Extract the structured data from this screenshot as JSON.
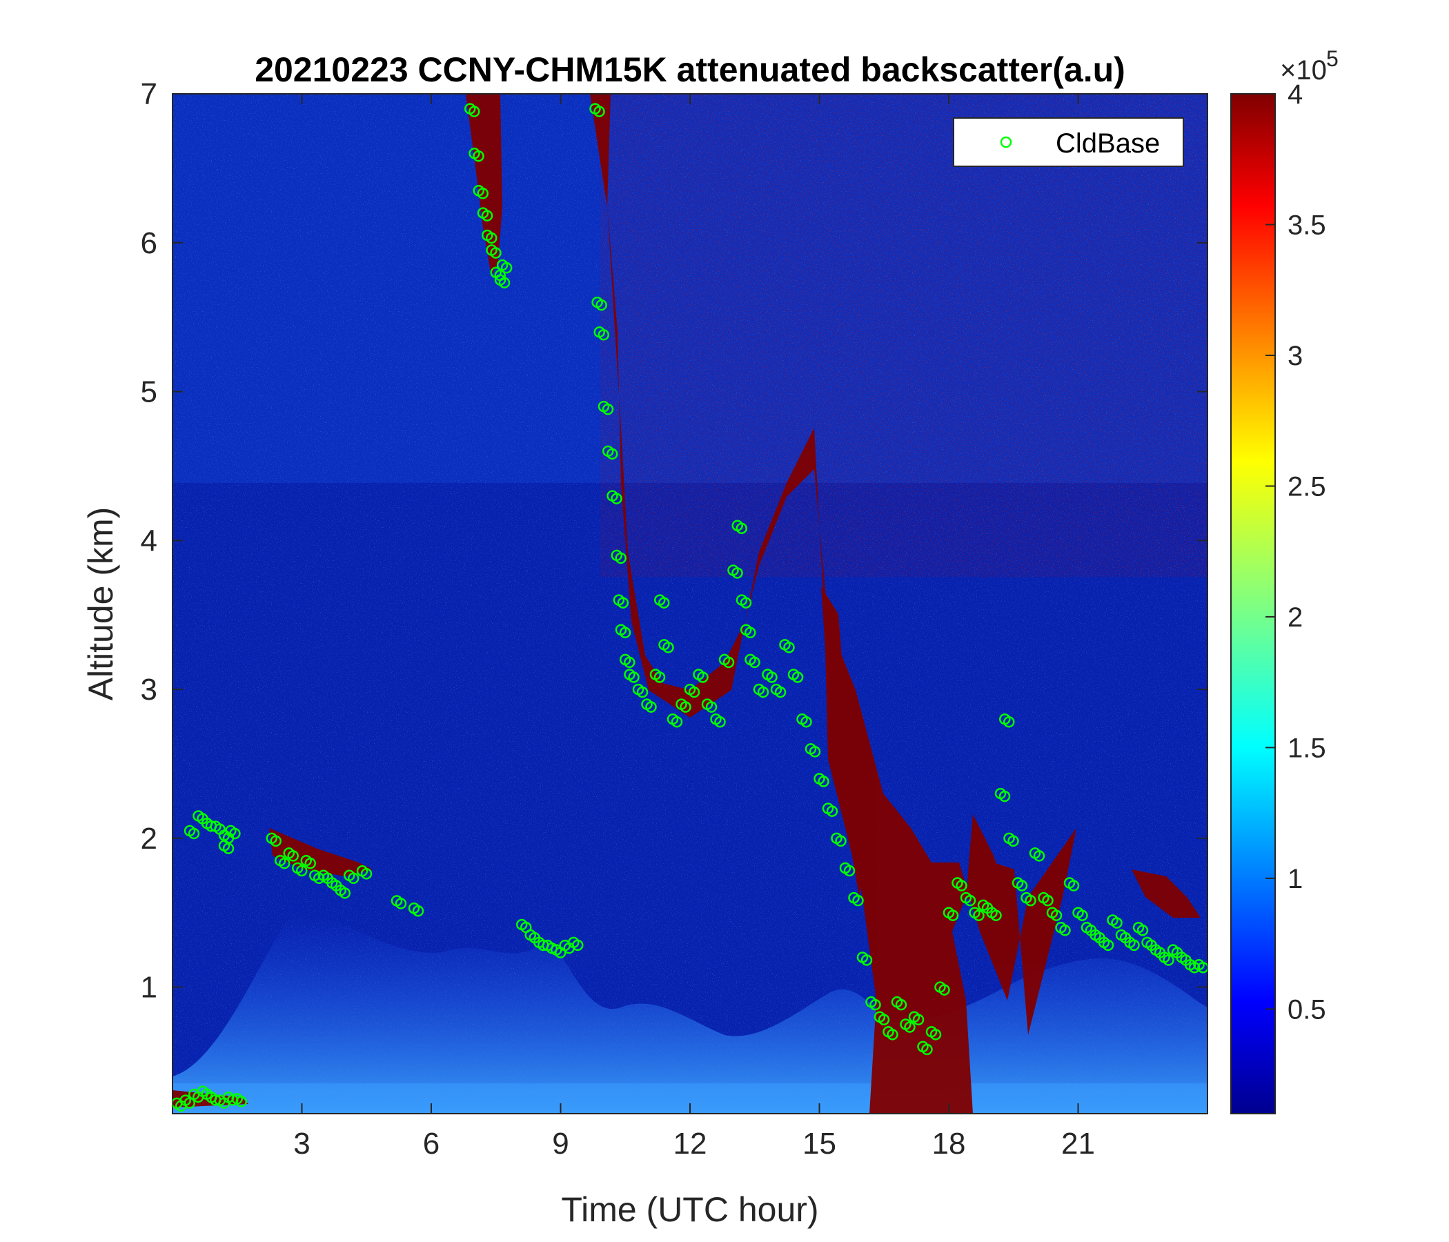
{
  "chart_data": {
    "type": "heatmap",
    "title": "20210223 CCNY-CHM15K attenuated backscatter(a.u)",
    "xlabel": "Time (UTC hour)",
    "ylabel": "Altitude (km)",
    "xlim": [
      0,
      24
    ],
    "ylim": [
      0.15,
      7
    ],
    "xticks": [
      3,
      6,
      9,
      12,
      15,
      18,
      21
    ],
    "xtick_labels": [
      "3",
      "6",
      "9",
      "12",
      "15",
      "18",
      "21"
    ],
    "yticks": [
      1,
      2,
      3,
      4,
      5,
      6,
      7
    ],
    "ytick_labels": [
      "1",
      "2",
      "3",
      "4",
      "5",
      "6",
      "7"
    ],
    "colormap": "jet",
    "colorbar": {
      "range": [
        10000,
        400000
      ],
      "ticks": [
        50000,
        100000,
        150000,
        200000,
        250000,
        300000,
        350000,
        400000
      ],
      "tick_labels": [
        "0.5",
        "1",
        "1.5",
        "2",
        "2.5",
        "3",
        "3.5",
        "4"
      ],
      "exponent_base": "×10",
      "exponent_power": "5"
    },
    "legend": {
      "placement": "top-right",
      "entries": [
        "CldBase"
      ]
    },
    "series": [
      {
        "name": "CldBase",
        "marker": "circle-open",
        "color": "#00ff00",
        "x": [
          0.1,
          0.3,
          0.5,
          0.7,
          0.9,
          1.1,
          1.3,
          1.5,
          0.4,
          0.6,
          0.8,
          1.0,
          1.2,
          1.2,
          1.35,
          2.3,
          2.5,
          2.7,
          2.9,
          3.1,
          3.3,
          3.5,
          3.7,
          3.9,
          4.1,
          4.4,
          5.2,
          5.6,
          6.9,
          7.0,
          7.1,
          7.2,
          7.3,
          7.4,
          7.5,
          7.6,
          7.65,
          8.1,
          8.3,
          8.5,
          8.7,
          8.9,
          9.1,
          9.3,
          9.8,
          9.85,
          9.9,
          10.0,
          10.1,
          10.2,
          10.3,
          10.35,
          10.4,
          10.5,
          10.6,
          10.8,
          11.0,
          11.2,
          11.3,
          11.4,
          11.6,
          11.8,
          12.0,
          12.2,
          12.4,
          12.6,
          12.8,
          13.0,
          13.1,
          13.2,
          13.3,
          13.4,
          13.6,
          13.8,
          14.0,
          14.2,
          14.4,
          14.6,
          14.8,
          15.0,
          15.2,
          15.4,
          15.6,
          15.8,
          16.0,
          16.2,
          16.4,
          16.6,
          16.8,
          17.0,
          17.2,
          17.4,
          17.6,
          17.8,
          18.0,
          18.2,
          18.4,
          18.6,
          18.8,
          19.0,
          19.2,
          19.3,
          19.4,
          19.6,
          19.8,
          20.0,
          20.2,
          20.4,
          20.6,
          20.8,
          21.0,
          21.2,
          21.4,
          21.6,
          21.8,
          22.0,
          22.2,
          22.4,
          22.6,
          22.8,
          23.0,
          23.2,
          23.4,
          23.6,
          23.8
        ],
        "y": [
          0.22,
          0.24,
          0.28,
          0.3,
          0.26,
          0.24,
          0.26,
          0.25,
          2.05,
          2.15,
          2.1,
          2.08,
          1.95,
          2.02,
          2.05,
          2.0,
          1.85,
          1.9,
          1.8,
          1.85,
          1.75,
          1.75,
          1.7,
          1.65,
          1.75,
          1.78,
          1.58,
          1.53,
          6.9,
          6.6,
          6.35,
          6.2,
          6.05,
          5.95,
          5.8,
          5.75,
          5.85,
          1.42,
          1.35,
          1.3,
          1.28,
          1.25,
          1.28,
          1.3,
          6.9,
          5.6,
          5.4,
          4.9,
          4.6,
          4.3,
          3.9,
          3.6,
          3.4,
          3.2,
          3.1,
          3.0,
          2.9,
          3.1,
          3.6,
          3.3,
          2.8,
          2.9,
          3.0,
          3.1,
          2.9,
          2.8,
          3.2,
          3.8,
          4.1,
          3.6,
          3.4,
          3.2,
          3.0,
          3.1,
          3.0,
          3.3,
          3.1,
          2.8,
          2.6,
          2.4,
          2.2,
          2.0,
          1.8,
          1.6,
          1.2,
          0.9,
          0.8,
          0.7,
          0.9,
          0.75,
          0.8,
          0.6,
          0.7,
          1.0,
          1.5,
          1.7,
          1.6,
          1.5,
          1.55,
          1.5,
          2.3,
          2.8,
          2.0,
          1.7,
          1.6,
          1.9,
          1.6,
          1.5,
          1.4,
          1.7,
          1.5,
          1.4,
          1.35,
          1.3,
          1.45,
          1.35,
          1.3,
          1.4,
          1.3,
          1.25,
          1.2,
          1.25,
          1.2,
          1.15,
          1.15
        ]
      }
    ]
  }
}
